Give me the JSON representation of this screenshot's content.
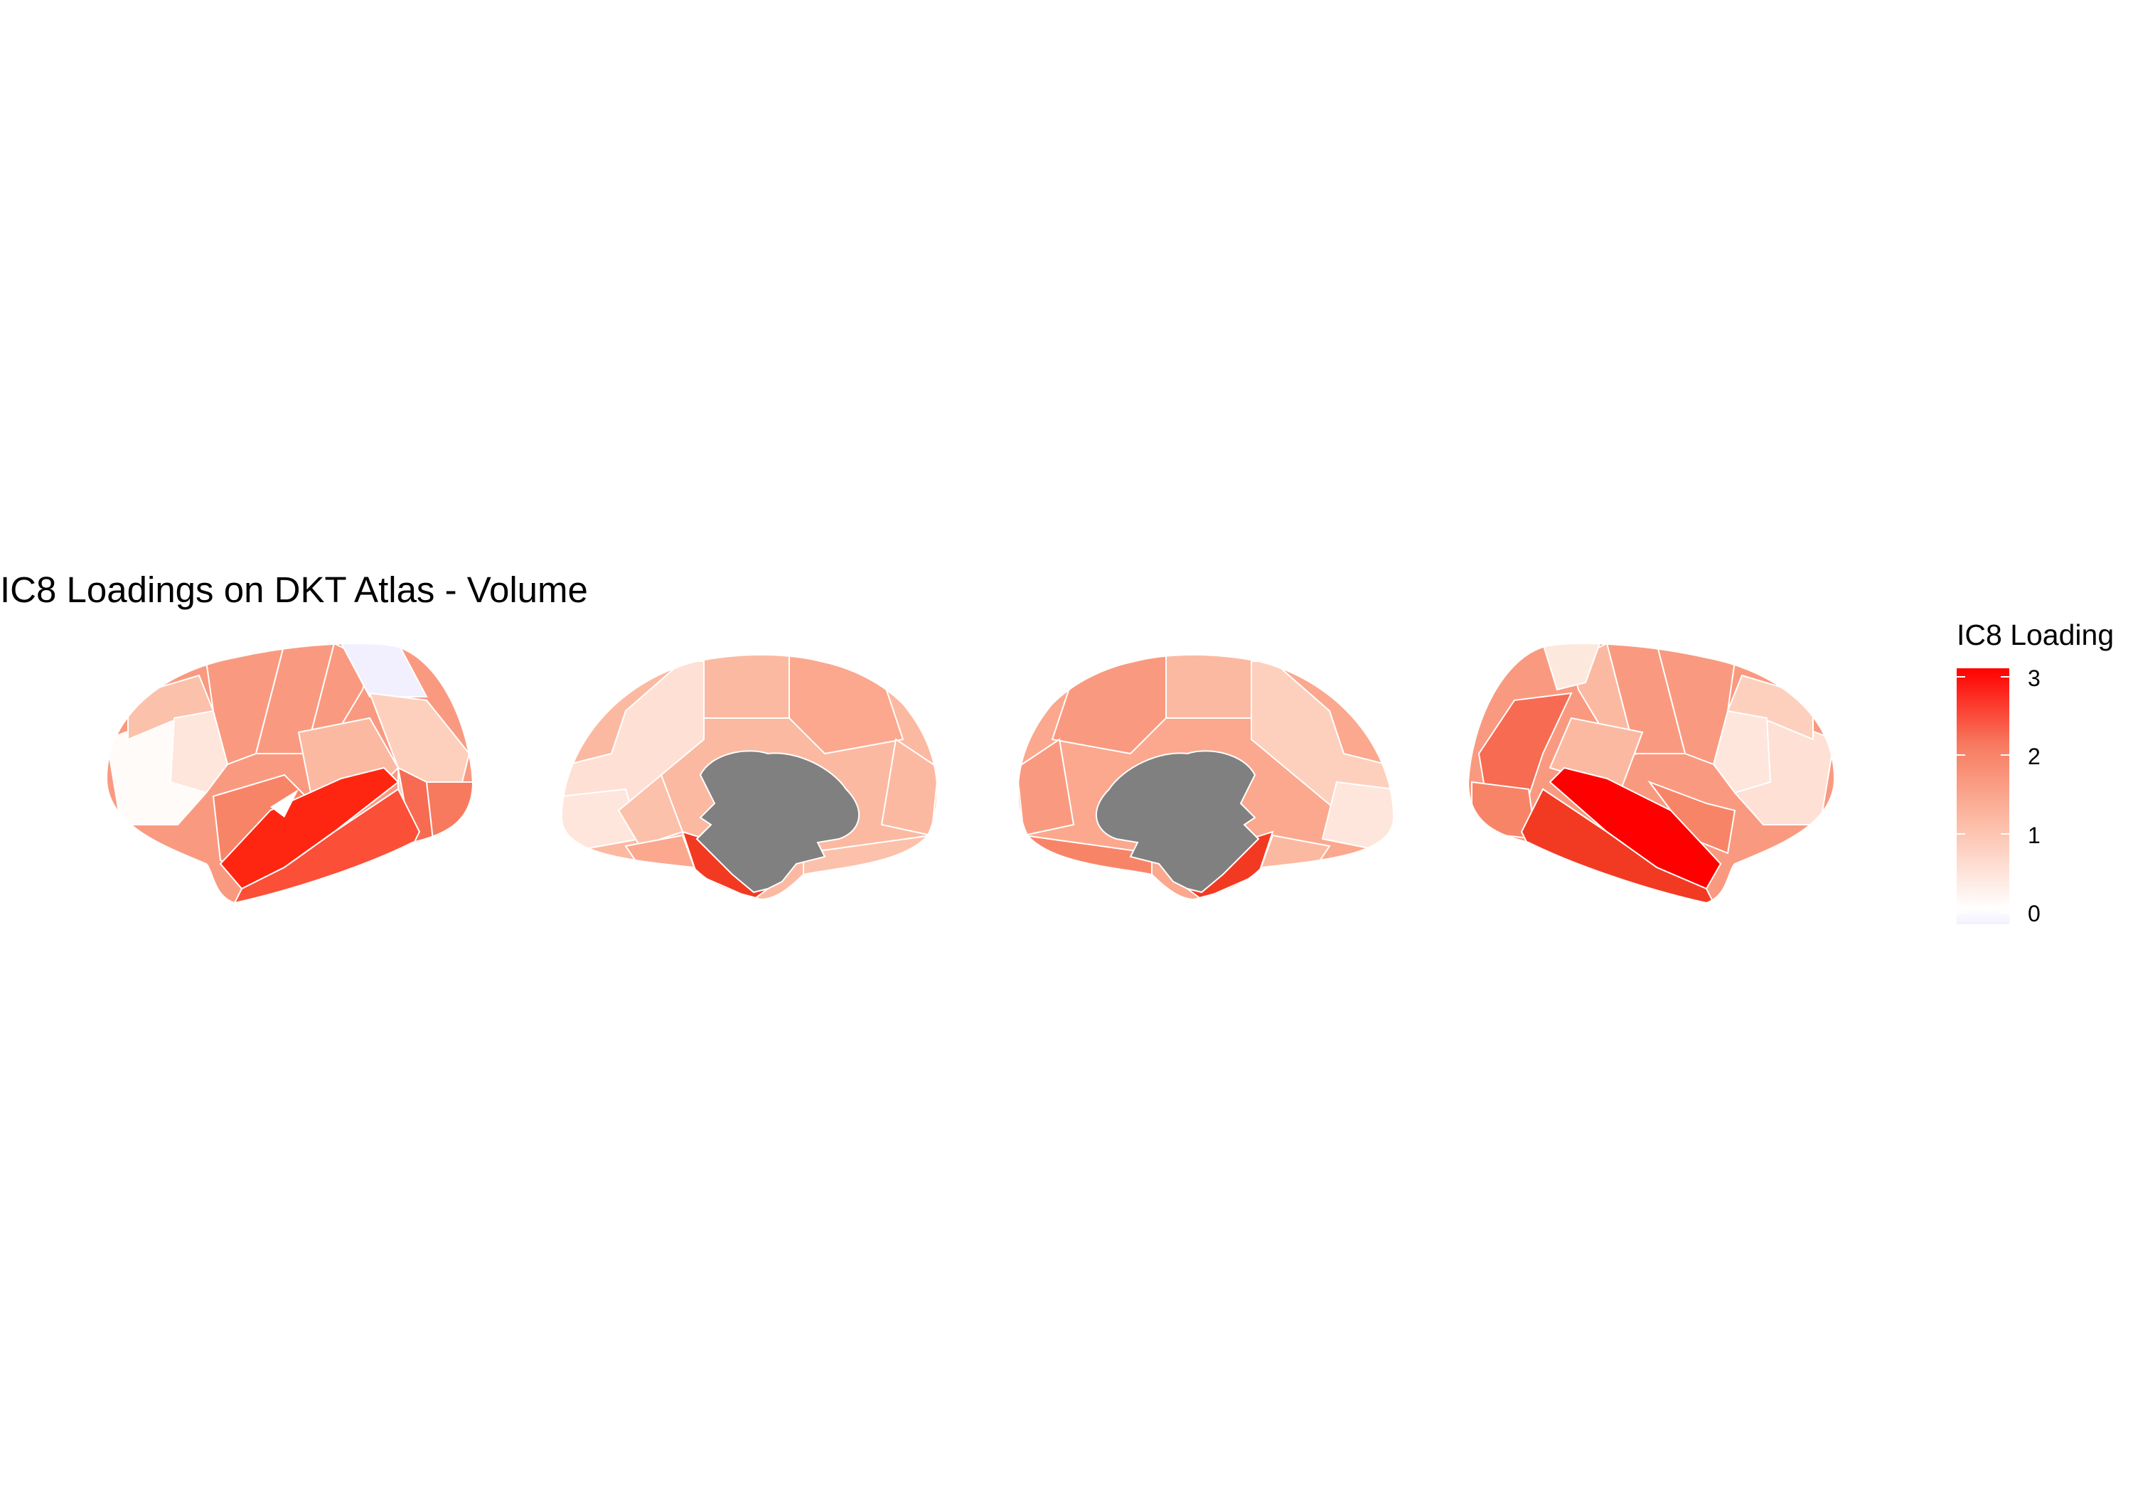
{
  "title": "IC8 Loadings on DKT Atlas - Volume",
  "legend": {
    "title": "IC8 Loading",
    "ticks": [
      "3",
      "2",
      "1",
      "0"
    ],
    "scale": {
      "min": -0.2,
      "max": 3.1,
      "low_color": "#F2F0FF",
      "mid_color": "#FFFFFF",
      "high_color": "#FF0000"
    }
  },
  "views": [
    "left-lateral",
    "left-medial",
    "right-medial",
    "right-lateral"
  ],
  "colors": {
    "subcortical": "#808080",
    "boundary": "#FFFFFF"
  }
}
